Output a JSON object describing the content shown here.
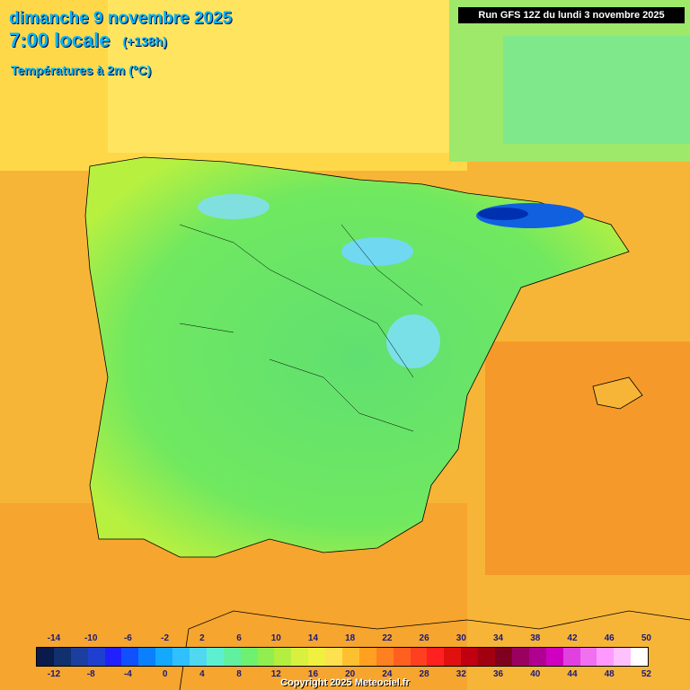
{
  "header": {
    "date_line": "dimanche 9 novembre 2025",
    "time_line": "7:00 locale",
    "offset": "(+138h)",
    "variable": "Températures à 2m (°C)",
    "run_info": "Run GFS 12Z du lundi 3 novembre 2025"
  },
  "legend": {
    "top_ticks": [
      "-14",
      "-10",
      "-6",
      "-2",
      "2",
      "6",
      "10",
      "14",
      "18",
      "22",
      "26",
      "30",
      "34",
      "38",
      "42",
      "46",
      "50"
    ],
    "bottom_ticks": [
      "-12",
      "-8",
      "-4",
      "0",
      "4",
      "8",
      "12",
      "16",
      "20",
      "24",
      "28",
      "32",
      "36",
      "40",
      "44",
      "48",
      "52"
    ],
    "colors": [
      "#0a1a4a",
      "#10306e",
      "#1b3f9e",
      "#1f3fd0",
      "#2020ff",
      "#1050ff",
      "#0a80ff",
      "#15a8ff",
      "#30c0ff",
      "#50d8f0",
      "#5cf0d0",
      "#60f0a0",
      "#6ef070",
      "#90ee50",
      "#b4ee40",
      "#d8f040",
      "#f0f040",
      "#ffe050",
      "#ffc030",
      "#ffa020",
      "#ff8020",
      "#ff6020",
      "#ff4020",
      "#ff2020",
      "#e01010",
      "#c00010",
      "#a00010",
      "#800020",
      "#9a0060",
      "#b00090",
      "#d000c0",
      "#e040e0",
      "#f070f0",
      "#ff99ff",
      "#ffc0ff",
      "#ffffff"
    ]
  },
  "footer": {
    "copyright": "Copyright 2025 Meteociel.fr"
  }
}
